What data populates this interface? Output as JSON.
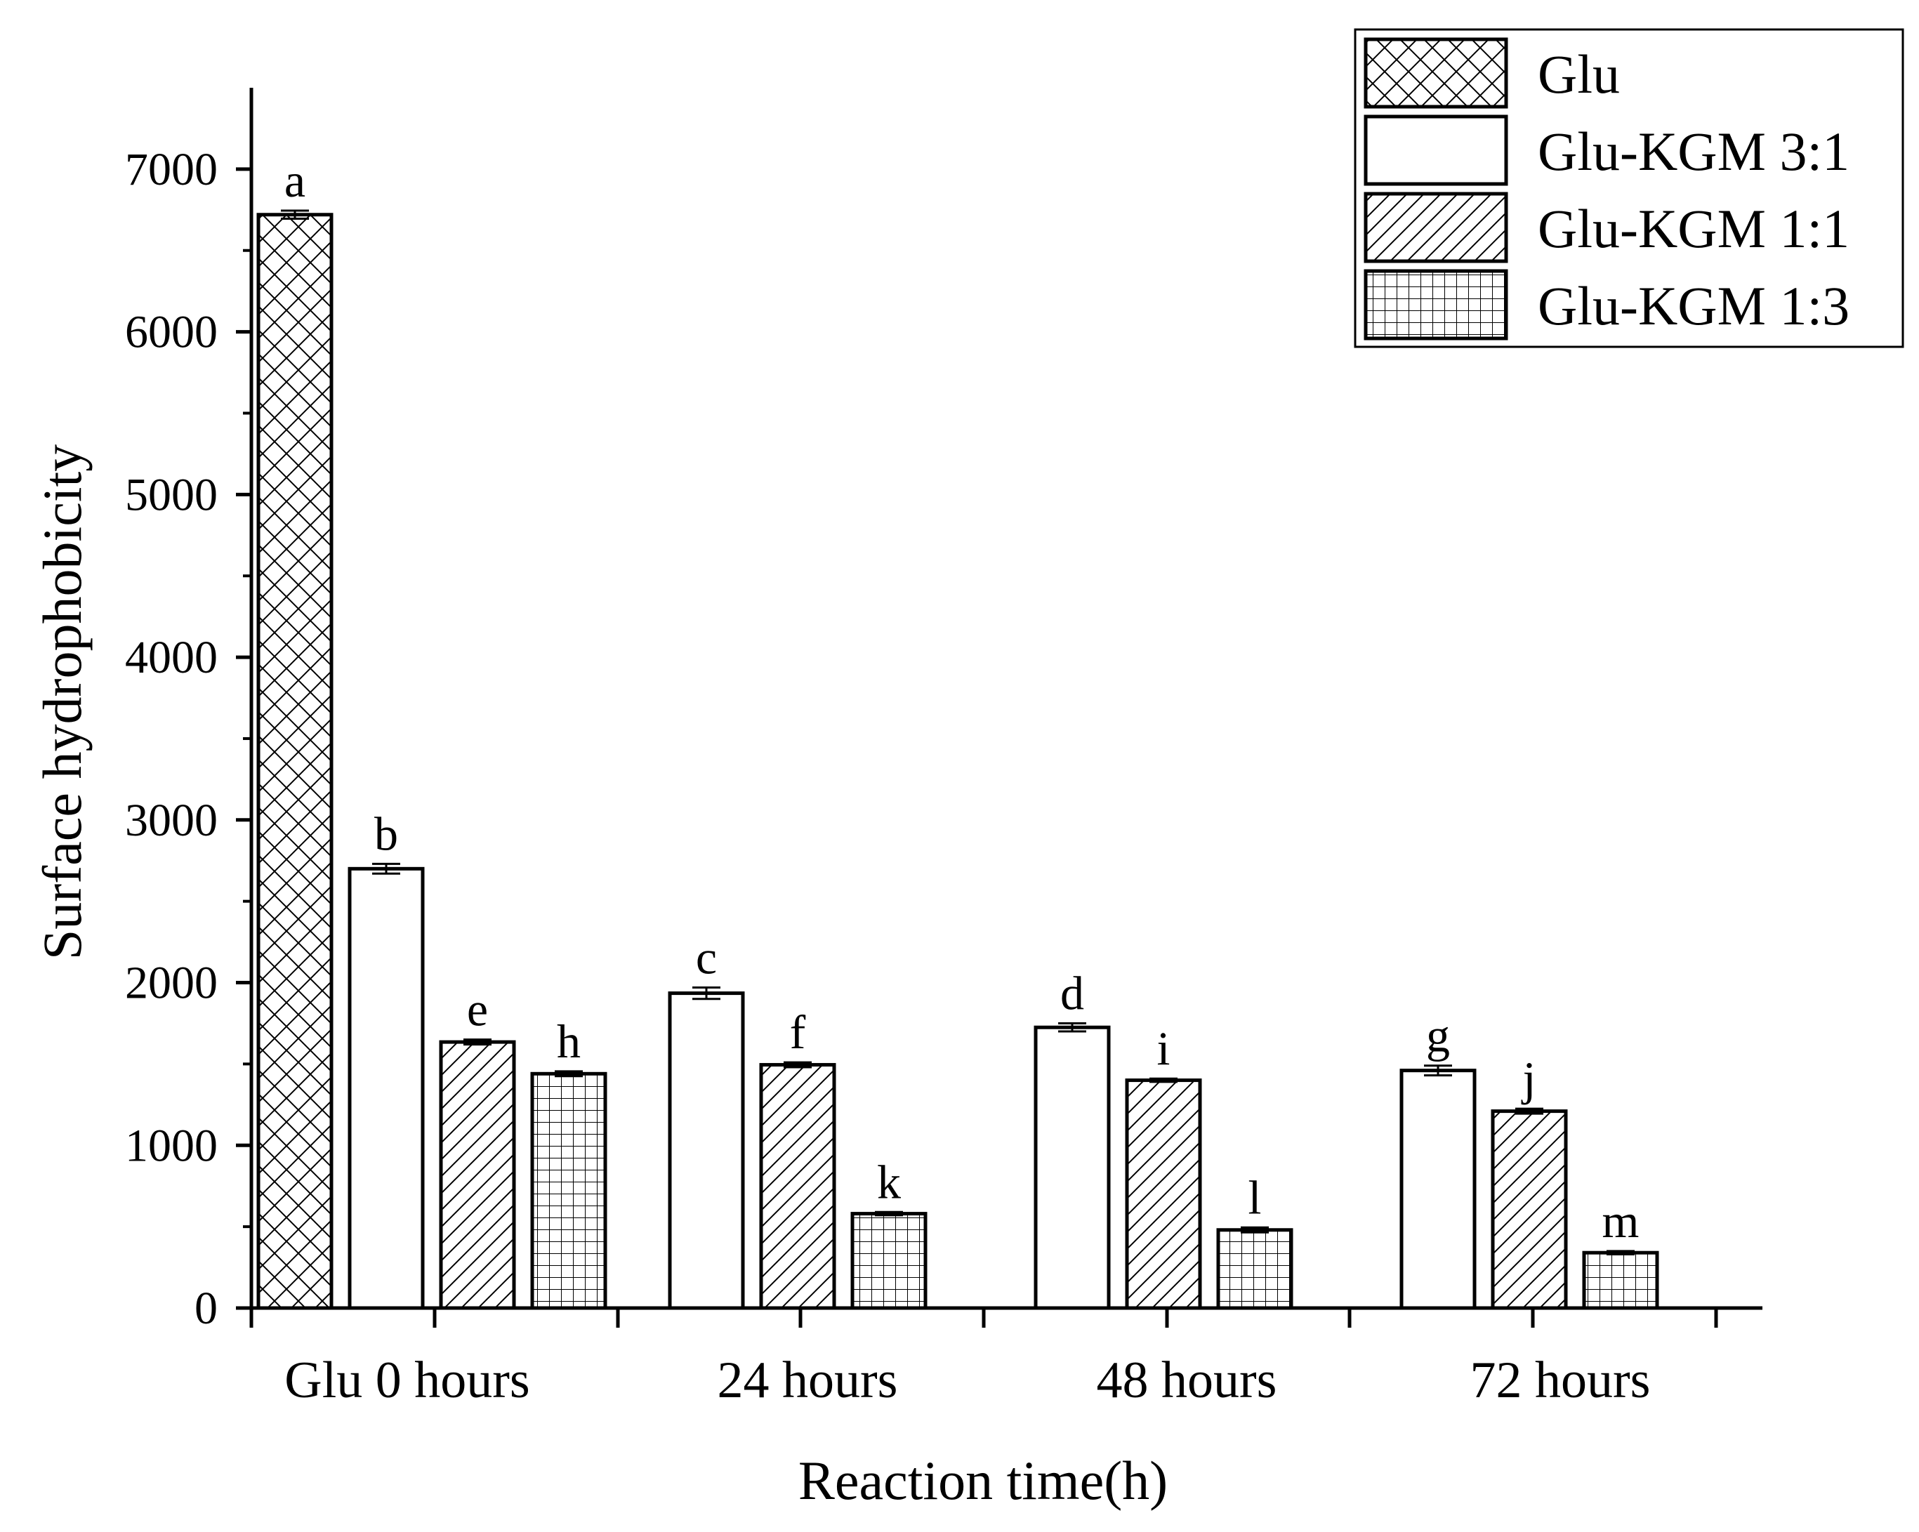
{
  "chart_data": {
    "type": "bar",
    "title": "",
    "xlabel": "Reaction time(h)",
    "ylabel": "Surface hydrophobicity",
    "ylim": [
      0,
      7500
    ],
    "yticks": [
      0,
      1000,
      2000,
      3000,
      4000,
      5000,
      6000,
      7000
    ],
    "categories": [
      "Glu 0 hours",
      "24 hours",
      "48 hours",
      "72 hours"
    ],
    "legend_position": "top-right",
    "series": [
      {
        "name": "Glu",
        "pattern": "crosshatch",
        "values": [
          6720,
          null,
          null,
          null
        ],
        "errors": [
          25,
          null,
          null,
          null
        ],
        "labels": [
          "a",
          null,
          null,
          null
        ]
      },
      {
        "name": "Glu-KGM 3:1",
        "pattern": "none",
        "values": [
          2700,
          1935,
          1725,
          1460
        ],
        "errors": [
          30,
          35,
          25,
          30
        ],
        "labels": [
          "b",
          "c",
          "d",
          "g"
        ]
      },
      {
        "name": "Glu-KGM 1:1",
        "pattern": "diagonal",
        "values": [
          1635,
          1495,
          1400,
          1210
        ],
        "errors": [
          15,
          15,
          10,
          15
        ],
        "labels": [
          "e",
          "f",
          "i",
          "j"
        ]
      },
      {
        "name": "Glu-KGM 1:3",
        "pattern": "grid",
        "values": [
          1440,
          580,
          480,
          340
        ],
        "errors": [
          15,
          10,
          15,
          10
        ],
        "labels": [
          "h",
          "k",
          "l",
          "m"
        ]
      }
    ]
  },
  "colors": {
    "stroke": "#000000",
    "fill": "#ffffff"
  }
}
